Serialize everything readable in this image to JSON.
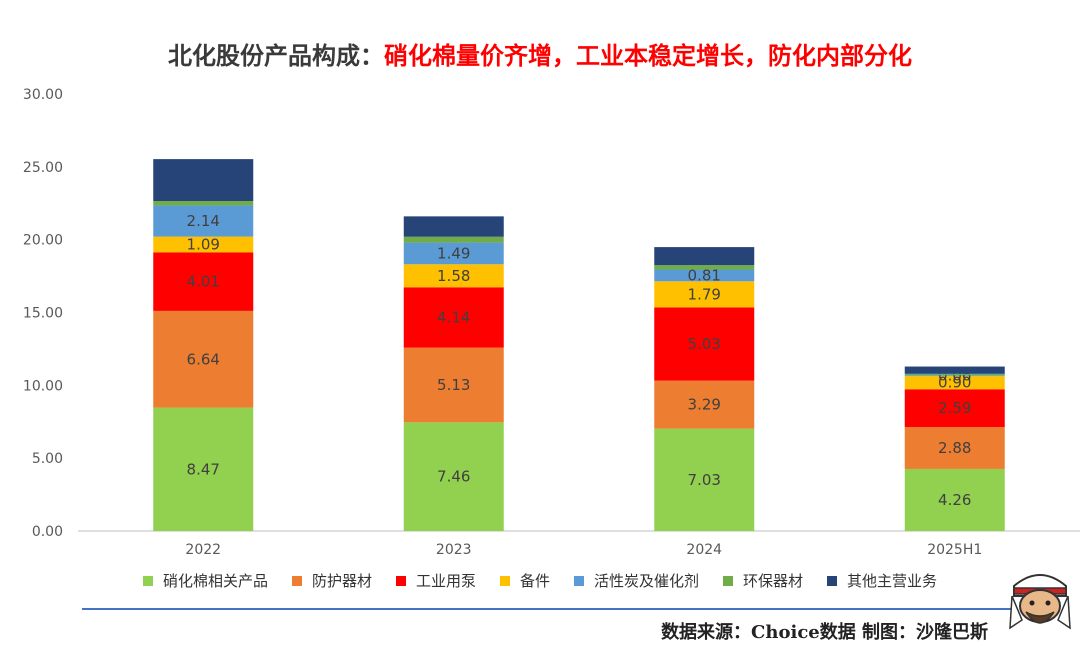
{
  "title": {
    "prefix": "北化股份产品构成：",
    "highlight": "硝化棉量价齐增，工业本稳定增长，防化内部分化"
  },
  "source_text": "数据来源：Choice数据  制图：沙隆巴斯",
  "chart_data": {
    "type": "bar",
    "stacked": true,
    "title": "北化股份产品构成：硝化棉量价齐增，工业本稳定增长，防化内部分化",
    "categories": [
      "2022",
      "2023",
      "2024",
      "2025H1"
    ],
    "ylim": [
      0,
      30
    ],
    "yticks": [
      "0.00",
      "5.00",
      "10.00",
      "15.00",
      "20.00",
      "25.00",
      "30.00"
    ],
    "grid": false,
    "legend_position": "bottom",
    "series": [
      {
        "name": "硝化棉相关产品",
        "color": "#92d050",
        "values": [
          8.47,
          7.46,
          7.03,
          4.26
        ],
        "labels": [
          "8.47",
          "7.46",
          "7.03",
          "4.26"
        ],
        "label_color": "#404040"
      },
      {
        "name": "防护器材",
        "color": "#ed7d31",
        "values": [
          6.64,
          5.13,
          3.29,
          2.88
        ],
        "labels": [
          "6.64",
          "5.13",
          "3.29",
          "2.88"
        ],
        "label_color": "#404040"
      },
      {
        "name": "工业用泵",
        "color": "#ff0000",
        "values": [
          4.01,
          4.14,
          5.03,
          2.59
        ],
        "labels": [
          "4.01",
          "4.14",
          "5.03",
          "2.59"
        ],
        "label_color": "#404040"
      },
      {
        "name": "备件",
        "color": "#ffc000",
        "values": [
          1.09,
          1.58,
          1.79,
          0.9
        ],
        "labels": [
          "1.09",
          "1.58",
          "1.79",
          "0.90"
        ],
        "label_color": "#404040"
      },
      {
        "name": "活性炭及催化剂",
        "color": "#5b9bd5",
        "values": [
          2.14,
          1.49,
          0.81,
          0.06
        ],
        "labels": [
          "2.14",
          "1.49",
          "0.81",
          "0.06"
        ],
        "label_color": "#404040"
      },
      {
        "name": "环保器材",
        "color": "#70ad47",
        "values": [
          0.3,
          0.4,
          0.3,
          0.1
        ],
        "labels": [
          "",
          "",
          "",
          ""
        ],
        "label_color": "#404040"
      },
      {
        "name": "其他主营业务",
        "color": "#264478",
        "values": [
          2.88,
          1.4,
          1.24,
          0.5
        ],
        "labels": [
          "",
          "",
          "",
          ""
        ],
        "label_color": "#404040"
      }
    ]
  }
}
